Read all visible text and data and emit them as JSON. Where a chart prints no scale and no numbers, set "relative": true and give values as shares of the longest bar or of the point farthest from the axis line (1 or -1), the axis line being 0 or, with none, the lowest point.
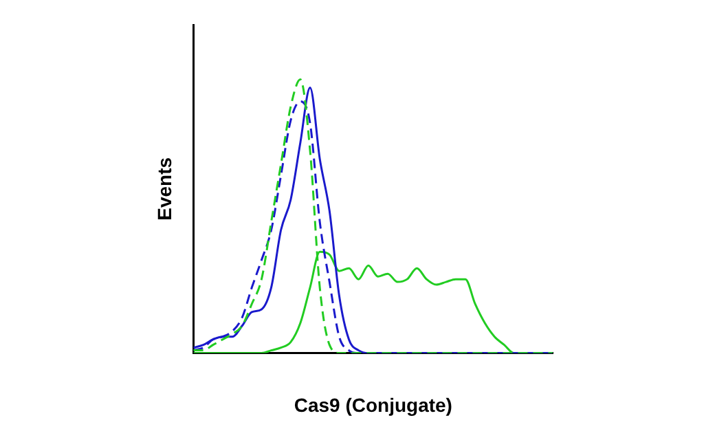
{
  "chart_data": {
    "type": "line",
    "xlabel": "Cas9 (Conjugate)",
    "ylabel": "Events",
    "relative": true,
    "grid": false,
    "legend": false,
    "marker": "none",
    "categories": [
      null,
      null,
      null,
      null,
      null,
      null,
      null,
      null,
      null,
      null,
      null,
      null,
      null,
      null,
      null,
      null,
      null,
      null,
      null,
      null,
      null,
      null,
      null,
      null,
      null,
      null,
      null,
      null,
      null,
      null,
      null,
      null,
      null,
      null,
      null,
      null,
      null,
      null
    ],
    "series": [
      {
        "color": "#22cc22",
        "line_style": "dashed",
        "values": [
          0.01,
          0.01,
          0.03,
          0.05,
          0.07,
          0.1,
          0.18,
          0.27,
          0.48,
          0.69,
          0.9,
          1,
          0.74,
          0.24,
          0.03,
          0,
          0,
          0,
          0,
          0,
          0,
          0,
          0,
          0,
          0,
          0,
          0,
          0,
          0,
          0,
          0,
          0,
          0,
          0,
          0,
          0,
          0,
          0
        ]
      },
      {
        "color": "#1a1acc",
        "line_style": "dashed",
        "values": [
          0.01,
          0.02,
          0.05,
          0.06,
          0.08,
          0.13,
          0.24,
          0.34,
          0.45,
          0.65,
          0.85,
          0.92,
          0.84,
          0.48,
          0.26,
          0.06,
          0.01,
          0,
          0,
          0,
          0,
          0,
          0,
          0,
          0,
          0,
          0,
          0,
          0,
          0,
          0,
          0,
          0,
          0,
          0,
          0,
          0,
          0
        ]
      },
      {
        "color": "#1a1acc",
        "line_style": "solid",
        "values": [
          0.02,
          0.03,
          0.05,
          0.06,
          0.06,
          0.1,
          0.15,
          0.16,
          0.24,
          0.45,
          0.56,
          0.77,
          0.97,
          0.71,
          0.52,
          0.21,
          0.05,
          0.01,
          0,
          0,
          0,
          0,
          0,
          0,
          0,
          0,
          0,
          0,
          0,
          0,
          0,
          0,
          0,
          0,
          0,
          0,
          0,
          0
        ]
      },
      {
        "color": "#22cc22",
        "line_style": "solid",
        "values": [
          0,
          0,
          0,
          0,
          0,
          0,
          0,
          0,
          0.01,
          0.02,
          0.04,
          0.11,
          0.24,
          0.37,
          0.36,
          0.3,
          0.31,
          0.27,
          0.32,
          0.28,
          0.29,
          0.26,
          0.27,
          0.31,
          0.27,
          0.25,
          0.26,
          0.27,
          0.27,
          0.18,
          0.11,
          0.06,
          0.03,
          0,
          0,
          0,
          0,
          0
        ]
      }
    ]
  }
}
